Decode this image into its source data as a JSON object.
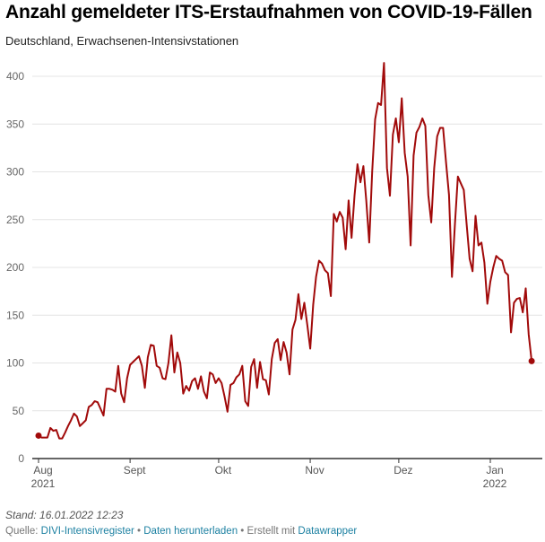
{
  "chart_data": {
    "type": "line",
    "title": "Anzahl gemeldeter ITS-Erstaufnahmen von COVID-19-Fällen",
    "subtitle": "Deutschland, Erwachsenen-Intensivstationen",
    "xlabel": "",
    "ylabel": "",
    "ylim": [
      0,
      420
    ],
    "xlim": [
      "2021-07-30",
      "2022-01-18"
    ],
    "grid": true,
    "y_ticks": [
      0,
      50,
      100,
      150,
      200,
      250,
      300,
      350,
      400
    ],
    "x_ticks": [
      {
        "date": "2021-08-01",
        "label": "Aug",
        "year": "2021"
      },
      {
        "date": "2021-09-01",
        "label": "Sept",
        "year": ""
      },
      {
        "date": "2021-10-01",
        "label": "Okt",
        "year": ""
      },
      {
        "date": "2021-11-01",
        "label": "Nov",
        "year": ""
      },
      {
        "date": "2021-12-01",
        "label": "Dez",
        "year": ""
      },
      {
        "date": "2022-01-01",
        "label": "Jan",
        "year": "2022"
      }
    ],
    "line_color": "#a10a0a",
    "x": [
      "2021-08-01",
      "2021-08-02",
      "2021-08-03",
      "2021-08-04",
      "2021-08-05",
      "2021-08-06",
      "2021-08-07",
      "2021-08-08",
      "2021-08-09",
      "2021-08-10",
      "2021-08-11",
      "2021-08-12",
      "2021-08-13",
      "2021-08-14",
      "2021-08-15",
      "2021-08-16",
      "2021-08-17",
      "2021-08-18",
      "2021-08-19",
      "2021-08-20",
      "2021-08-21",
      "2021-08-22",
      "2021-08-23",
      "2021-08-24",
      "2021-08-25",
      "2021-08-26",
      "2021-08-27",
      "2021-08-28",
      "2021-08-29",
      "2021-08-30",
      "2021-08-31",
      "2021-09-01",
      "2021-09-02",
      "2021-09-03",
      "2021-09-04",
      "2021-09-05",
      "2021-09-06",
      "2021-09-07",
      "2021-09-08",
      "2021-09-09",
      "2021-09-10",
      "2021-09-11",
      "2021-09-12",
      "2021-09-13",
      "2021-09-14",
      "2021-09-15",
      "2021-09-16",
      "2021-09-17",
      "2021-09-18",
      "2021-09-19",
      "2021-09-20",
      "2021-09-21",
      "2021-09-22",
      "2021-09-23",
      "2021-09-24",
      "2021-09-25",
      "2021-09-26",
      "2021-09-27",
      "2021-09-28",
      "2021-09-29",
      "2021-09-30",
      "2021-10-01",
      "2021-10-02",
      "2021-10-03",
      "2021-10-04",
      "2021-10-05",
      "2021-10-06",
      "2021-10-07",
      "2021-10-08",
      "2021-10-09",
      "2021-10-10",
      "2021-10-11",
      "2021-10-12",
      "2021-10-13",
      "2021-10-14",
      "2021-10-15",
      "2021-10-16",
      "2021-10-17",
      "2021-10-18",
      "2021-10-19",
      "2021-10-20",
      "2021-10-21",
      "2021-10-22",
      "2021-10-23",
      "2021-10-24",
      "2021-10-25",
      "2021-10-26",
      "2021-10-27",
      "2021-10-28",
      "2021-10-29",
      "2021-10-30",
      "2021-10-31",
      "2021-11-01",
      "2021-11-02",
      "2021-11-03",
      "2021-11-04",
      "2021-11-05",
      "2021-11-06",
      "2021-11-07",
      "2021-11-08",
      "2021-11-09",
      "2021-11-10",
      "2021-11-11",
      "2021-11-12",
      "2021-11-13",
      "2021-11-14",
      "2021-11-15",
      "2021-11-16",
      "2021-11-17",
      "2021-11-18",
      "2021-11-19",
      "2021-11-20",
      "2021-11-21",
      "2021-11-22",
      "2021-11-23",
      "2021-11-24",
      "2021-11-25",
      "2021-11-26",
      "2021-11-27",
      "2021-11-28",
      "2021-11-29",
      "2021-11-30",
      "2021-12-01",
      "2021-12-02",
      "2021-12-03",
      "2021-12-04",
      "2021-12-05",
      "2021-12-06",
      "2021-12-07",
      "2021-12-08",
      "2021-12-09",
      "2021-12-10",
      "2021-12-11",
      "2021-12-12",
      "2021-12-13",
      "2021-12-14",
      "2021-12-15",
      "2021-12-16",
      "2021-12-17",
      "2021-12-18",
      "2021-12-19",
      "2021-12-20",
      "2021-12-21",
      "2021-12-22",
      "2021-12-23",
      "2021-12-24",
      "2021-12-25",
      "2021-12-26",
      "2021-12-27",
      "2021-12-28",
      "2021-12-29",
      "2021-12-30",
      "2021-12-31",
      "2022-01-01",
      "2022-01-02",
      "2022-01-03",
      "2022-01-04",
      "2022-01-05",
      "2022-01-06",
      "2022-01-07",
      "2022-01-08",
      "2022-01-09",
      "2022-01-10",
      "2022-01-11",
      "2022-01-12",
      "2022-01-13",
      "2022-01-14",
      "2022-01-15"
    ],
    "values": [
      24,
      22,
      22,
      22,
      32,
      29,
      30,
      21,
      21,
      27,
      34,
      40,
      47,
      44,
      34,
      37,
      40,
      54,
      56,
      60,
      59,
      52,
      45,
      73,
      73,
      72,
      70,
      97,
      68,
      59,
      84,
      98,
      101,
      104,
      107,
      97,
      74,
      106,
      119,
      118,
      97,
      95,
      84,
      83,
      100,
      129,
      90,
      111,
      100,
      68,
      76,
      71,
      81,
      84,
      73,
      86,
      70,
      63,
      90,
      88,
      79,
      84,
      79,
      65,
      49,
      77,
      79,
      85,
      88,
      97,
      60,
      55,
      96,
      104,
      74,
      101,
      83,
      82,
      67,
      104,
      121,
      125,
      103,
      122,
      111,
      88,
      135,
      145,
      172,
      146,
      163,
      140,
      115,
      161,
      190,
      207,
      204,
      197,
      194,
      170,
      256,
      248,
      258,
      252,
      219,
      270,
      231,
      275,
      308,
      289,
      306,
      270,
      226,
      300,
      355,
      372,
      370,
      414,
      304,
      275,
      339,
      356,
      331,
      377,
      320,
      295,
      223,
      317,
      341,
      347,
      356,
      348,
      276,
      247,
      304,
      337,
      346,
      346,
      310,
      276,
      190,
      245,
      295,
      288,
      281,
      245,
      209,
      196,
      254,
      223,
      226,
      205,
      162,
      185,
      200,
      212,
      209,
      207,
      195,
      192,
      132,
      163,
      167,
      168,
      153,
      178,
      130,
      102
    ]
  },
  "footer": {
    "stand": "Stand: 16.01.2022 12:23",
    "source_prefix": "Quelle: ",
    "source_link": "DIVI-Intensivregister",
    "sep1": " • ",
    "download_link": "Daten herunterladen",
    "sep2": " • Erstellt mit ",
    "tool_link": "Datawrapper"
  },
  "colors": {
    "link": "#1d81a2",
    "grid": "#e4e4e4",
    "axis": "#333333"
  }
}
